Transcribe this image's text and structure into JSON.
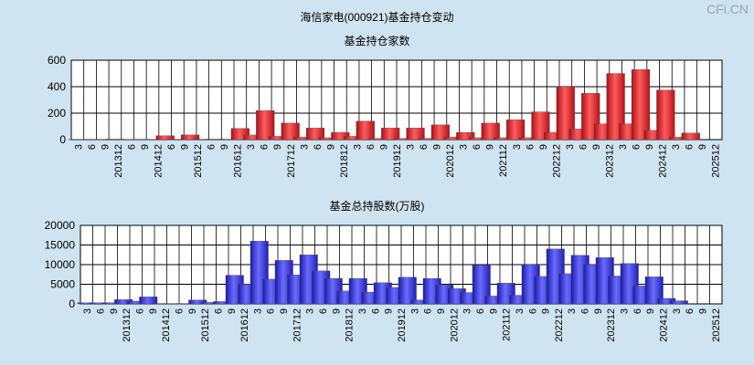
{
  "page": {
    "title": "海信家电(000921)基金持仓变动",
    "watermark": "CFi.CN"
  },
  "chart_data": [
    {
      "type": "bar",
      "title": "基金持仓家数",
      "categories": [
        "3",
        "6",
        "9",
        "201312",
        "3",
        "6",
        "9",
        "201412",
        "3",
        "6",
        "9",
        "201512",
        "3",
        "6",
        "9",
        "201612",
        "3",
        "6",
        "9",
        "201712",
        "3",
        "6",
        "9",
        "201812",
        "3",
        "6",
        "9",
        "201912",
        "3",
        "6",
        "9",
        "202012",
        "3",
        "6",
        "9",
        "202112",
        "3",
        "6",
        "9",
        "202212",
        "3",
        "6",
        "9",
        "202312",
        "3",
        "6",
        "9",
        "202412",
        "3",
        "6",
        "9",
        "202512"
      ],
      "tick_labels": [
        "3",
        "6",
        "9",
        "201312",
        "6",
        "9",
        "201412",
        "6",
        "9",
        "201512",
        "6",
        "9",
        "201612",
        "3",
        "6",
        "9",
        "201712",
        "3",
        "6",
        "9",
        "201812",
        "3",
        "6",
        "9",
        "201912",
        "3",
        "6",
        "9",
        "202012",
        "3",
        "6",
        "9",
        "202112",
        "3",
        "6",
        "9",
        "202212",
        "3",
        "6",
        "9",
        "202312",
        "3",
        "6",
        "9",
        "202412",
        "3",
        "6",
        "9",
        "202512"
      ],
      "values": [
        2,
        3,
        2,
        4,
        2,
        3,
        2,
        30,
        3,
        36,
        3,
        4,
        3,
        85,
        35,
        220,
        25,
        125,
        20,
        88,
        15,
        55,
        25,
        140,
        10,
        88,
        10,
        88,
        10,
        112,
        20,
        55,
        15,
        125,
        15,
        150,
        15,
        210,
        55,
        400,
        80,
        350,
        120,
        500,
        120,
        530,
        70,
        375,
        20,
        50,
        0,
        0
      ],
      "ylim": [
        0,
        600
      ],
      "yticks": [
        0,
        200,
        400,
        600
      ],
      "grid": true,
      "color": "#e8313a"
    },
    {
      "type": "bar",
      "title": "基金总持股数(万股)",
      "categories": [
        "3",
        "6",
        "9",
        "201312",
        "3",
        "6",
        "9",
        "201412",
        "3",
        "6",
        "9",
        "201512",
        "3",
        "6",
        "9",
        "201612",
        "3",
        "6",
        "9",
        "201712",
        "3",
        "6",
        "9",
        "201812",
        "3",
        "6",
        "9",
        "201912",
        "3",
        "6",
        "9",
        "202012",
        "3",
        "6",
        "9",
        "202112",
        "3",
        "6",
        "9",
        "202212",
        "3",
        "6",
        "9",
        "202312",
        "3",
        "6",
        "9",
        "202412",
        "3",
        "6",
        "9",
        "202512"
      ],
      "tick_labels": [
        "3",
        "6",
        "9",
        "201312",
        "6",
        "9",
        "201412",
        "6",
        "9",
        "201512",
        "6",
        "9",
        "201612",
        "3",
        "6",
        "9",
        "201712",
        "3",
        "6",
        "9",
        "201812",
        "3",
        "6",
        "9",
        "201912",
        "3",
        "6",
        "9",
        "202012",
        "3",
        "6",
        "9",
        "202112",
        "3",
        "6",
        "9",
        "202212",
        "3",
        "6",
        "9",
        "202312",
        "3",
        "6",
        "9",
        "202412",
        "3",
        "6",
        "9",
        "202512"
      ],
      "values": [
        300,
        300,
        300,
        1100,
        700,
        1800,
        100,
        100,
        100,
        1000,
        400,
        600,
        7300,
        5000,
        16000,
        6300,
        11100,
        7400,
        12500,
        8400,
        6500,
        3300,
        6500,
        3000,
        5400,
        4200,
        6800,
        1000,
        6500,
        4800,
        3900,
        2900,
        9900,
        2000,
        5300,
        2200,
        10000,
        7000,
        14000,
        7700,
        12400,
        10000,
        11800,
        7100,
        10300,
        4600,
        6900,
        1400,
        800,
        0,
        0,
        0
      ],
      "ylim": [
        0,
        20000
      ],
      "yticks": [
        0,
        5000,
        10000,
        15000,
        20000
      ],
      "grid": true,
      "color": "#3b3fe0"
    }
  ]
}
